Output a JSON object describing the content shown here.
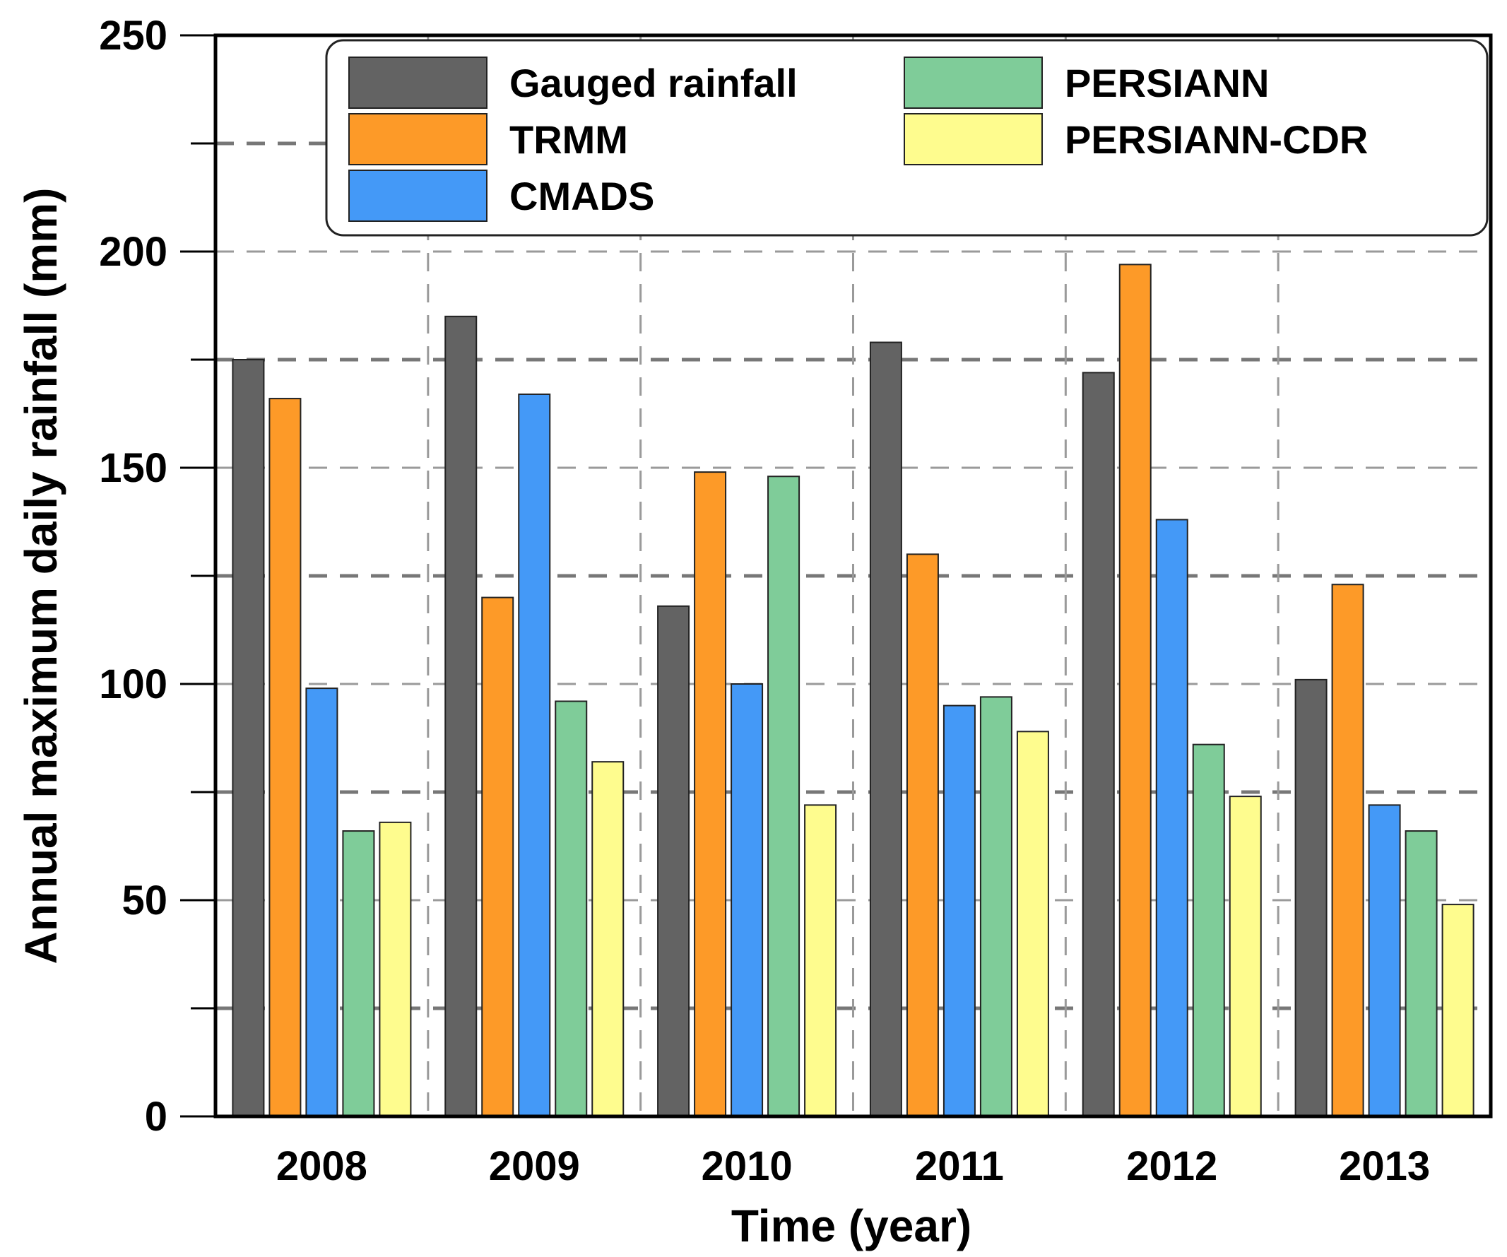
{
  "chart_data": {
    "type": "bar",
    "title": "",
    "xlabel": "Time (year)",
    "ylabel": "Annual maximum daily rainfall (mm)",
    "ylim": [
      0,
      250
    ],
    "yticks": [
      0,
      50,
      100,
      150,
      200,
      250
    ],
    "categories": [
      "2008",
      "2009",
      "2010",
      "2011",
      "2012",
      "2013"
    ],
    "grid": true,
    "legend_position": "top",
    "series": [
      {
        "name": "Gauged rainfall",
        "color": "#636363",
        "values": [
          175,
          185,
          118,
          179,
          172,
          101
        ]
      },
      {
        "name": "TRMM",
        "color": "#fd9a28",
        "values": [
          166,
          120,
          149,
          130,
          197,
          123
        ]
      },
      {
        "name": "CMADS",
        "color": "#4499f7",
        "values": [
          99,
          167,
          100,
          95,
          138,
          72
        ]
      },
      {
        "name": "PERSIANN",
        "color": "#7fcc99",
        "values": [
          66,
          96,
          148,
          97,
          86,
          66
        ]
      },
      {
        "name": "PERSIANN-CDR",
        "color": "#fefc8e",
        "values": [
          68,
          82,
          72,
          89,
          74,
          49
        ]
      }
    ]
  }
}
